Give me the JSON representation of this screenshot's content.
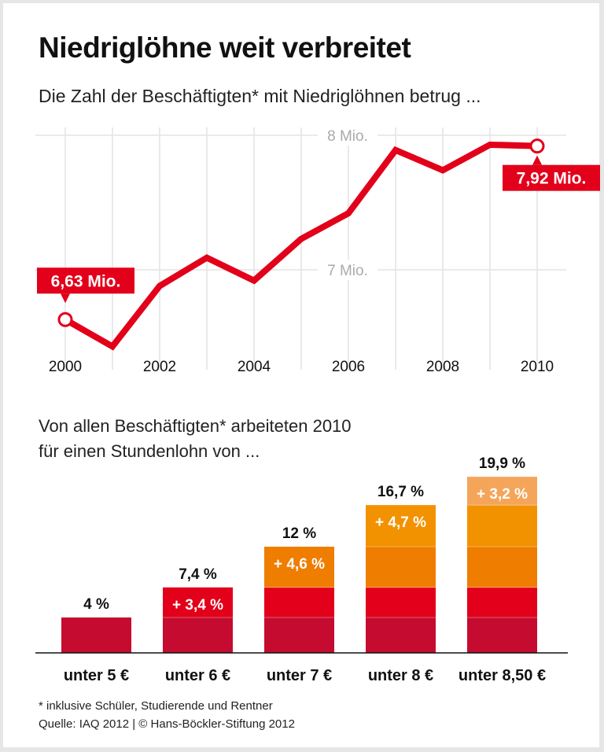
{
  "title": "Niedriglöhne weit verbreitet",
  "subtitle": "Die Zahl der Beschäftigten* mit Niedriglöhnen betrug ...",
  "bar_subtitle_line1": "Von allen Beschäftigten* arbeiteten 2010",
  "bar_subtitle_line2": "für einen Stundenlohn von ...",
  "footnote": "* inklusive Schüler, Studierende und Rentner",
  "source": "Quelle: IAQ 2012 | © Hans-Böckler-Stiftung 2012",
  "colors": {
    "line": "#e2001a",
    "seg1": "#c50c30",
    "seg2": "#e2001a",
    "seg3": "#ef7d00",
    "seg4": "#f39200",
    "seg5": "#f5a55a"
  },
  "chart_data": [
    {
      "type": "line",
      "x": [
        2000,
        2001,
        2002,
        2003,
        2004,
        2005,
        2006,
        2007,
        2008,
        2009,
        2010
      ],
      "values": [
        6.63,
        6.43,
        6.88,
        7.09,
        6.92,
        7.23,
        7.42,
        7.89,
        7.74,
        7.93,
        7.92
      ],
      "unit": "Mio.",
      "ylim": [
        6.4,
        8.0
      ],
      "x_tick_labels": [
        "2000",
        "2002",
        "2004",
        "2006",
        "2008",
        "2010"
      ],
      "y_tick_labels": [
        {
          "value": 8,
          "label": "8 Mio."
        },
        {
          "value": 7,
          "label": "7 Mio."
        }
      ],
      "annotations": [
        {
          "x": 2000,
          "label": "6,63 Mio."
        },
        {
          "x": 2010,
          "label": "7,92 Mio."
        }
      ],
      "grid": true
    },
    {
      "type": "bar",
      "stacked": true,
      "categories": [
        "unter 5 €",
        "unter 6 €",
        "unter 7 €",
        "unter 8 €",
        "unter 8,50 €"
      ],
      "totals": [
        4,
        7.4,
        12,
        16.7,
        19.9
      ],
      "total_labels": [
        "4 %",
        "7,4 %",
        "12 %",
        "16,7 %",
        "19,9 %"
      ],
      "increments": [
        4,
        3.4,
        4.6,
        4.7,
        3.2
      ],
      "increment_labels": [
        "",
        "+ 3,4 %",
        "+ 4,6 %",
        "+ 4,7 %",
        "+ 3,2 %"
      ],
      "unit": "%"
    }
  ]
}
